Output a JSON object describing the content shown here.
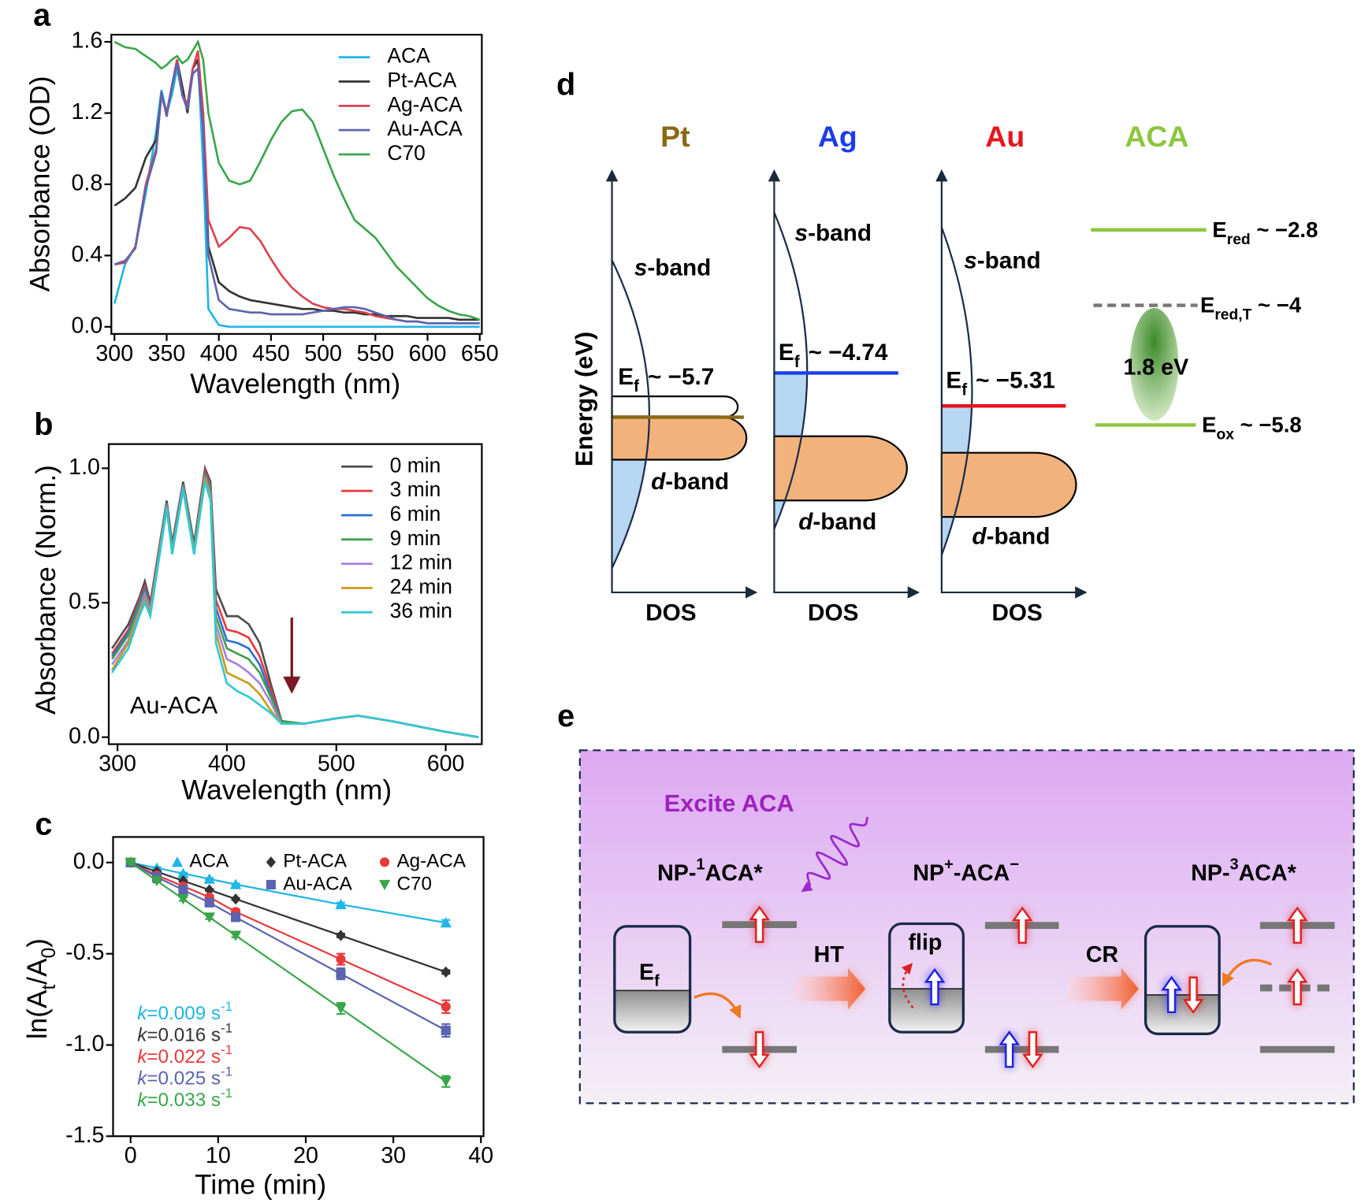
{
  "chart_data": [
    {
      "type": "line",
      "panel_label": "a",
      "xlabel": "Wavelength (nm)",
      "ylabel": "Absorbance (OD)",
      "x": [
        300,
        310,
        320,
        330,
        340,
        345,
        350,
        355,
        360,
        365,
        370,
        375,
        380,
        385,
        390,
        400,
        410,
        420,
        430,
        440,
        450,
        460,
        470,
        480,
        490,
        500,
        510,
        520,
        530,
        540,
        550,
        560,
        570,
        580,
        590,
        600,
        610,
        620,
        630,
        640,
        650
      ],
      "series": [
        {
          "name": "ACA",
          "color": "#1fb5e6",
          "values": [
            0.13,
            0.35,
            0.45,
            0.75,
            1.1,
            1.33,
            1.2,
            1.3,
            1.45,
            1.3,
            1.25,
            1.45,
            1.5,
            0.9,
            0.1,
            0.01,
            0,
            0,
            0,
            0,
            0,
            0,
            0,
            0,
            0,
            0,
            0,
            0,
            0,
            0,
            0,
            0,
            0,
            0,
            0,
            0,
            0,
            0,
            0,
            0,
            0
          ]
        },
        {
          "name": "Pt-ACA",
          "color": "#333333",
          "values": [
            0.68,
            0.72,
            0.78,
            0.95,
            1.05,
            1.3,
            1.2,
            1.35,
            1.5,
            1.35,
            1.2,
            1.45,
            1.5,
            1.2,
            0.45,
            0.25,
            0.2,
            0.17,
            0.15,
            0.14,
            0.13,
            0.12,
            0.11,
            0.1,
            0.1,
            0.09,
            0.09,
            0.08,
            0.08,
            0.07,
            0.07,
            0.06,
            0.06,
            0.06,
            0.05,
            0.05,
            0.05,
            0.05,
            0.04,
            0.04,
            0.04
          ]
        },
        {
          "name": "Ag-ACA",
          "color": "#d9434f",
          "values": [
            0.35,
            0.36,
            0.45,
            0.8,
            1.0,
            1.3,
            1.2,
            1.35,
            1.5,
            1.3,
            1.25,
            1.45,
            1.55,
            1.2,
            0.6,
            0.45,
            0.5,
            0.56,
            0.55,
            0.48,
            0.38,
            0.29,
            0.22,
            0.17,
            0.13,
            0.11,
            0.1,
            0.1,
            0.09,
            0.08,
            0.06,
            0.05,
            0.04,
            0.03,
            0.03,
            0.02,
            0.02,
            0.02,
            0.02,
            0.02,
            0.02
          ]
        },
        {
          "name": "Au-ACA",
          "color": "#5a64b0",
          "values": [
            0.35,
            0.37,
            0.44,
            0.78,
            0.98,
            1.32,
            1.18,
            1.35,
            1.48,
            1.3,
            1.22,
            1.42,
            1.45,
            1.1,
            0.4,
            0.15,
            0.1,
            0.09,
            0.08,
            0.08,
            0.07,
            0.07,
            0.07,
            0.07,
            0.08,
            0.09,
            0.1,
            0.11,
            0.11,
            0.1,
            0.08,
            0.06,
            0.04,
            0.03,
            0.03,
            0.02,
            0.02,
            0.02,
            0.02,
            0.02,
            0.02
          ]
        },
        {
          "name": "C70",
          "color": "#3aa64a",
          "values": [
            1.6,
            1.57,
            1.56,
            1.52,
            1.48,
            1.45,
            1.47,
            1.5,
            1.52,
            1.48,
            1.5,
            1.55,
            1.6,
            1.5,
            1.2,
            0.92,
            0.82,
            0.8,
            0.82,
            0.93,
            1.05,
            1.15,
            1.21,
            1.22,
            1.15,
            1.0,
            0.85,
            0.72,
            0.6,
            0.55,
            0.5,
            0.42,
            0.34,
            0.28,
            0.22,
            0.16,
            0.12,
            0.09,
            0.07,
            0.06,
            0.04
          ]
        }
      ],
      "xlim": [
        297,
        652
      ],
      "xticks": [
        300,
        350,
        400,
        450,
        500,
        550,
        600,
        650
      ],
      "ylim": [
        -0.04,
        1.64
      ],
      "yticks": [
        {
          "value": 0,
          "label": "0.0"
        },
        0.4,
        0.8,
        1.2,
        1.6
      ],
      "legend": "upper right"
    },
    {
      "type": "line",
      "panel_label": "b",
      "xlabel": "Wavelength (nm)",
      "ylabel": "Absorbance (Norm.)",
      "annotation": "Au-ACA",
      "x": [
        295,
        310,
        320,
        325,
        330,
        345,
        350,
        360,
        370,
        380,
        385,
        390,
        400,
        410,
        420,
        430,
        440,
        450,
        470,
        500,
        520,
        550,
        600,
        630
      ],
      "series": [
        {
          "name": "0 min",
          "color": "#4d4d4d",
          "values": [
            0.33,
            0.42,
            0.52,
            0.58,
            0.5,
            0.88,
            0.72,
            0.95,
            0.72,
            1.0,
            0.95,
            0.55,
            0.45,
            0.45,
            0.42,
            0.35,
            0.2,
            0.06,
            0.05,
            0.07,
            0.08,
            0.06,
            0.02,
            0.0
          ]
        },
        {
          "name": "3 min",
          "color": "#e8393c",
          "values": [
            0.31,
            0.4,
            0.51,
            0.56,
            0.49,
            0.87,
            0.71,
            0.94,
            0.71,
            0.99,
            0.94,
            0.51,
            0.4,
            0.39,
            0.37,
            0.3,
            0.18,
            0.06,
            0.05,
            0.07,
            0.08,
            0.06,
            0.02,
            0.0
          ]
        },
        {
          "name": "6 min",
          "color": "#2a6fd6",
          "values": [
            0.3,
            0.39,
            0.5,
            0.55,
            0.48,
            0.87,
            0.71,
            0.94,
            0.71,
            0.98,
            0.93,
            0.48,
            0.36,
            0.35,
            0.33,
            0.27,
            0.16,
            0.06,
            0.05,
            0.07,
            0.08,
            0.06,
            0.02,
            0.0
          ]
        },
        {
          "name": "9 min",
          "color": "#3aa14a",
          "values": [
            0.29,
            0.38,
            0.49,
            0.54,
            0.48,
            0.87,
            0.7,
            0.94,
            0.7,
            0.98,
            0.92,
            0.45,
            0.33,
            0.31,
            0.29,
            0.24,
            0.15,
            0.06,
            0.05,
            0.07,
            0.08,
            0.06,
            0.02,
            0.0
          ]
        },
        {
          "name": "12 min",
          "color": "#a77fe0",
          "values": [
            0.27,
            0.36,
            0.47,
            0.53,
            0.47,
            0.86,
            0.69,
            0.93,
            0.69,
            0.97,
            0.9,
            0.42,
            0.29,
            0.27,
            0.24,
            0.2,
            0.13,
            0.05,
            0.05,
            0.07,
            0.08,
            0.06,
            0.02,
            0.0
          ]
        },
        {
          "name": "24 min",
          "color": "#c99a1a",
          "values": [
            0.25,
            0.35,
            0.46,
            0.51,
            0.46,
            0.85,
            0.69,
            0.92,
            0.69,
            0.96,
            0.89,
            0.39,
            0.24,
            0.22,
            0.2,
            0.16,
            0.1,
            0.05,
            0.05,
            0.07,
            0.08,
            0.06,
            0.02,
            0.0
          ]
        },
        {
          "name": "36 min",
          "color": "#2ec9d6",
          "values": [
            0.24,
            0.33,
            0.45,
            0.5,
            0.45,
            0.85,
            0.68,
            0.92,
            0.68,
            0.95,
            0.88,
            0.35,
            0.2,
            0.17,
            0.15,
            0.12,
            0.09,
            0.05,
            0.05,
            0.07,
            0.08,
            0.06,
            0.02,
            0.0
          ]
        }
      ],
      "xlim": [
        292,
        633
      ],
      "xticks": [
        300,
        400,
        500,
        600
      ],
      "ylim": [
        -0.026,
        1.09
      ],
      "yticks": [
        {
          "value": 0,
          "label": "0.0"
        },
        0.5,
        {
          "value": 1,
          "label": "1.0"
        }
      ],
      "legend": "upper right"
    },
    {
      "type": "scatter",
      "panel_label": "c",
      "xlabel": "Time (min)",
      "ylabel": [
        "ln(A",
        "t",
        "/A",
        "0",
        ")"
      ],
      "x": [
        0,
        3,
        6,
        9,
        12,
        24,
        36
      ],
      "series": [
        {
          "name": "ACA",
          "color": "#1fb5e6",
          "marker": "triangle-up",
          "values": [
            0,
            -0.03,
            -0.06,
            -0.09,
            -0.12,
            -0.23,
            -0.33
          ],
          "errors": [
            0.005,
            0.005,
            0.005,
            0.005,
            0.005,
            0.01,
            0.015
          ],
          "annotation": [
            "k",
            "=0.009 s",
            "-1"
          ]
        },
        {
          "name": "Pt-ACA",
          "color": "#333333",
          "marker": "diamond",
          "values": [
            0,
            -0.05,
            -0.1,
            -0.15,
            -0.2,
            -0.4,
            -0.6
          ],
          "errors": [
            0.005,
            0.005,
            0.005,
            0.005,
            0.005,
            0.01,
            0.01
          ],
          "annotation": [
            "k",
            "=0.016 s",
            "-1"
          ]
        },
        {
          "name": "Ag-ACA",
          "color": "#e8393c",
          "marker": "circle",
          "values": [
            0,
            -0.07,
            -0.13,
            -0.19,
            -0.27,
            -0.53,
            -0.79
          ],
          "errors": [
            0.005,
            0.01,
            0.01,
            0.01,
            0.015,
            0.03,
            0.035
          ],
          "annotation": [
            "k",
            "=0.022 s",
            "-1"
          ]
        },
        {
          "name": "Au-ACA",
          "color": "#5a64b0",
          "marker": "square",
          "values": [
            0,
            -0.08,
            -0.15,
            -0.22,
            -0.3,
            -0.61,
            -0.92
          ],
          "errors": [
            0.005,
            0.01,
            0.01,
            0.01,
            0.015,
            0.03,
            0.035
          ],
          "annotation": [
            "k",
            "=0.025 s",
            "-1"
          ]
        },
        {
          "name": "C70",
          "color": "#3aa64a",
          "marker": "triangle-down",
          "values": [
            0,
            -0.1,
            -0.2,
            -0.3,
            -0.4,
            -0.8,
            -1.2
          ],
          "errors": [
            0.005,
            0.01,
            0.01,
            0.01,
            0.01,
            0.03,
            0.03
          ],
          "annotation": [
            "k",
            "=0.033 s",
            "-1"
          ]
        }
      ],
      "xlim": [
        -2,
        40.3
      ],
      "xticks": [
        0,
        10,
        20,
        30,
        40
      ],
      "ylim": [
        -1.5,
        0.14
      ],
      "yticks": [
        {
          "value": 0,
          "label": "0.0"
        },
        -0.5,
        {
          "value": -1,
          "label": "-1.0"
        },
        -1.5
      ],
      "legend": "upper center"
    }
  ],
  "diagram_d": {
    "panel_label": "d",
    "y_label": "Energy (eV)",
    "x_label": "DOS",
    "s_band": [
      "s",
      "-band"
    ],
    "d_band": [
      "d",
      "-band"
    ],
    "ef": [
      "E",
      "f"
    ],
    "metals": [
      {
        "name": "Pt",
        "color": "#8b6914",
        "ef_value": "~ −5.7"
      },
      {
        "name": "Ag",
        "color": "#1a3ee8",
        "ef_value": "~ −4.74"
      },
      {
        "name": "Au",
        "color": "#e8141e",
        "ef_value": "~ −5.31"
      }
    ],
    "aca": {
      "name": "ACA",
      "color": "#8cc63f",
      "levels": [
        [
          "E",
          "red",
          " ~ −2.8"
        ],
        [
          "E",
          "red,T",
          " ~ −4"
        ],
        [
          "E",
          "ox",
          " ~ −5.8"
        ]
      ],
      "gap": "1.8 eV"
    }
  },
  "diagram_e": {
    "panel_label": "e",
    "excite": "Excite ACA",
    "states": [
      [
        "NP-",
        "1",
        "ACA*"
      ],
      [
        "NP",
        "+",
        "-ACA",
        "−"
      ],
      [
        "NP-",
        "3",
        "ACA*"
      ]
    ],
    "ef": [
      "E",
      "f"
    ],
    "steps": [
      "HT",
      "CR"
    ],
    "flip": "flip"
  }
}
